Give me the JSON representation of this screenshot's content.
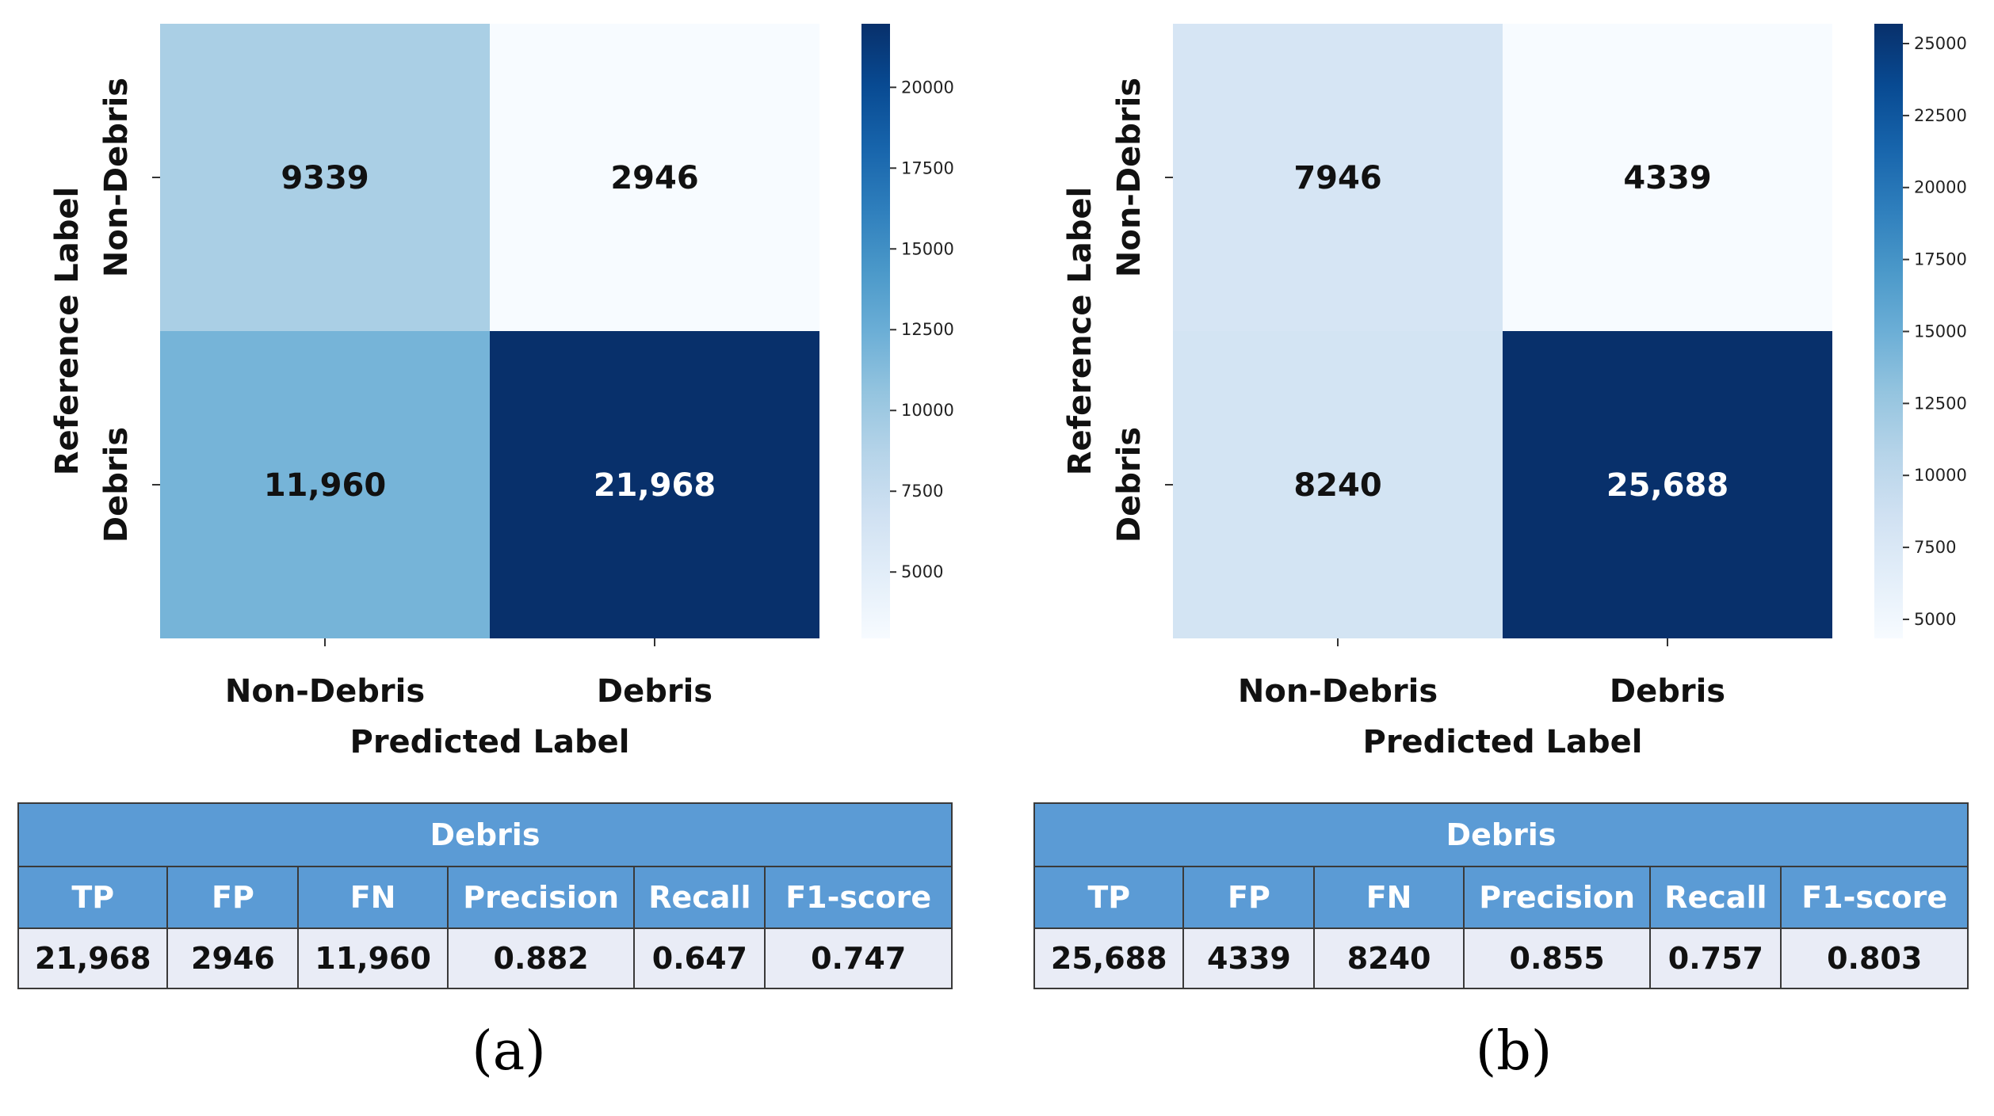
{
  "chart_data": [
    {
      "type": "heatmap",
      "panel_label": "(a)",
      "title": "",
      "xlabel": "Predicted Label",
      "ylabel": "Reference Label",
      "x_categories": [
        "Non-Debris",
        "Debris"
      ],
      "y_categories": [
        "Non-Debris",
        "Debris"
      ],
      "values": [
        [
          9339,
          2946
        ],
        [
          11960,
          21968
        ]
      ],
      "cell_labels": [
        [
          "9339",
          "2946"
        ],
        [
          "11,960",
          "21,968"
        ]
      ],
      "colormap": "Blues",
      "colorbar": {
        "min": 2946,
        "max": 21968,
        "ticks": [
          5000,
          7500,
          10000,
          12500,
          15000,
          17500,
          20000
        ]
      },
      "metrics_table": {
        "title": "Debris",
        "columns": [
          "TP",
          "FP",
          "FN",
          "Precision",
          "Recall",
          "F1-score"
        ],
        "values": [
          "21,968",
          "2946",
          "11,960",
          "0.882",
          "0.647",
          "0.747"
        ]
      }
    },
    {
      "type": "heatmap",
      "panel_label": "(b)",
      "title": "",
      "xlabel": "Predicted Label",
      "ylabel": "Reference Label",
      "x_categories": [
        "Non-Debris",
        "Debris"
      ],
      "y_categories": [
        "Non-Debris",
        "Debris"
      ],
      "values": [
        [
          7946,
          4339
        ],
        [
          8240,
          25688
        ]
      ],
      "cell_labels": [
        [
          "7946",
          "4339"
        ],
        [
          "8240",
          "25,688"
        ]
      ],
      "colormap": "Blues",
      "colorbar": {
        "min": 4339,
        "max": 25688,
        "ticks": [
          5000,
          7500,
          10000,
          12500,
          15000,
          17500,
          20000,
          22500,
          25000
        ]
      },
      "metrics_table": {
        "title": "Debris",
        "columns": [
          "TP",
          "FP",
          "FN",
          "Precision",
          "Recall",
          "F1-score"
        ],
        "values": [
          "25,688",
          "4339",
          "8240",
          "0.855",
          "0.757",
          "0.803"
        ]
      }
    }
  ]
}
